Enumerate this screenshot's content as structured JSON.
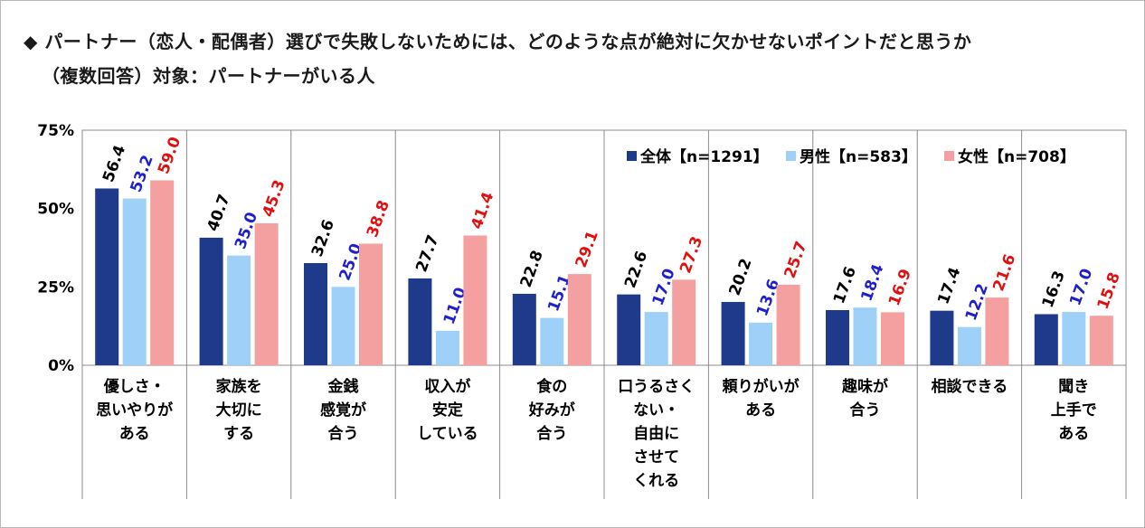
{
  "title_line1": "◆ パートナー（恋人・配偶者）選びで失敗しないためには、どのような点が絶対に欠かせないポイントだと思うか",
  "title_line2": "（複数回答）対象：パートナーがいる人",
  "chart_data": {
    "type": "bar",
    "ylim": [
      0,
      75
    ],
    "yticks": [
      "0%",
      "25%",
      "50%",
      "75%"
    ],
    "grid": false,
    "legend_position": "top-right",
    "categories": [
      [
        "優しさ・",
        "思いやりが",
        "ある"
      ],
      [
        "家族を",
        "大切に",
        "する"
      ],
      [
        "金銭",
        "感覚が",
        "合う"
      ],
      [
        "収入が",
        "安定",
        "している"
      ],
      [
        "食の",
        "好みが",
        "合う"
      ],
      [
        "口うるさく",
        "ない・",
        "自由に",
        "させて",
        "くれる"
      ],
      [
        "頼りがいが",
        "ある"
      ],
      [
        "趣味が",
        "合う"
      ],
      [
        "相談できる"
      ],
      [
        "聞き",
        "上手で",
        "ある"
      ]
    ],
    "series": [
      {
        "name": "全体【n=1291】",
        "color": "#1f3a8a",
        "label_color": "#000000",
        "values": [
          56.4,
          40.7,
          32.6,
          27.7,
          22.8,
          22.6,
          20.2,
          17.6,
          17.4,
          16.3
        ],
        "labels": [
          "56.4",
          "40.7",
          "32.6",
          "27.7",
          "22.8",
          "22.6",
          "20.2",
          "17.6",
          "17.4",
          "16.3"
        ]
      },
      {
        "name": "男性【n=583】",
        "color": "#9fd0f7",
        "label_color": "#1f1fcc",
        "values": [
          53.2,
          35.0,
          25.0,
          11.0,
          15.1,
          17.0,
          13.6,
          18.4,
          12.2,
          17.0
        ],
        "labels": [
          "53.2",
          "35.0",
          "25.0",
          "11.0",
          "15.1",
          "17.0",
          "13.6",
          "18.4",
          "12.2",
          "17.0"
        ]
      },
      {
        "name": "女性【n=708】",
        "color": "#f4a0a0",
        "label_color": "#e01010",
        "values": [
          59.0,
          45.3,
          38.8,
          41.4,
          29.1,
          27.3,
          25.7,
          16.9,
          21.6,
          15.8
        ],
        "labels": [
          "59.0",
          "45.3",
          "38.8",
          "41.4",
          "29.1",
          "27.3",
          "25.7",
          "16.9",
          "21.6",
          "15.8"
        ]
      }
    ]
  }
}
